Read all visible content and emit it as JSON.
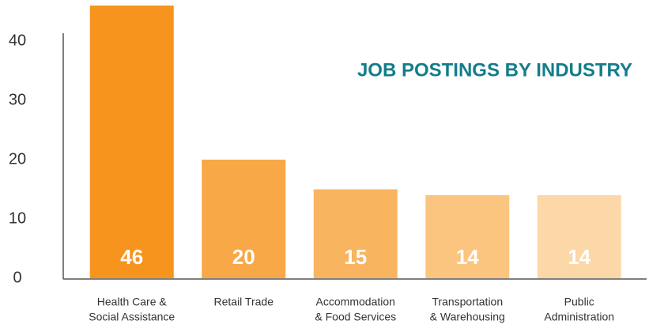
{
  "chart_data": {
    "type": "bar",
    "title": "JOB POSTINGS BY INDUSTRY",
    "categories": [
      [
        "Health Care &",
        "Social Assistance"
      ],
      [
        "Retail Trade"
      ],
      [
        "Accommodation",
        "& Food Services"
      ],
      [
        "Transportation",
        "& Warehousing"
      ],
      [
        "Public",
        "Administration"
      ]
    ],
    "values": [
      46,
      20,
      15,
      14,
      14
    ],
    "colors": [
      "#f7941d",
      "#f8a846",
      "#f9b460",
      "#fbc57f",
      "#fcd7a8"
    ],
    "title_color": "#137d8c",
    "ylim": [
      0,
      46
    ],
    "yticks": [
      0,
      10,
      20,
      30,
      40
    ],
    "grid": false
  }
}
